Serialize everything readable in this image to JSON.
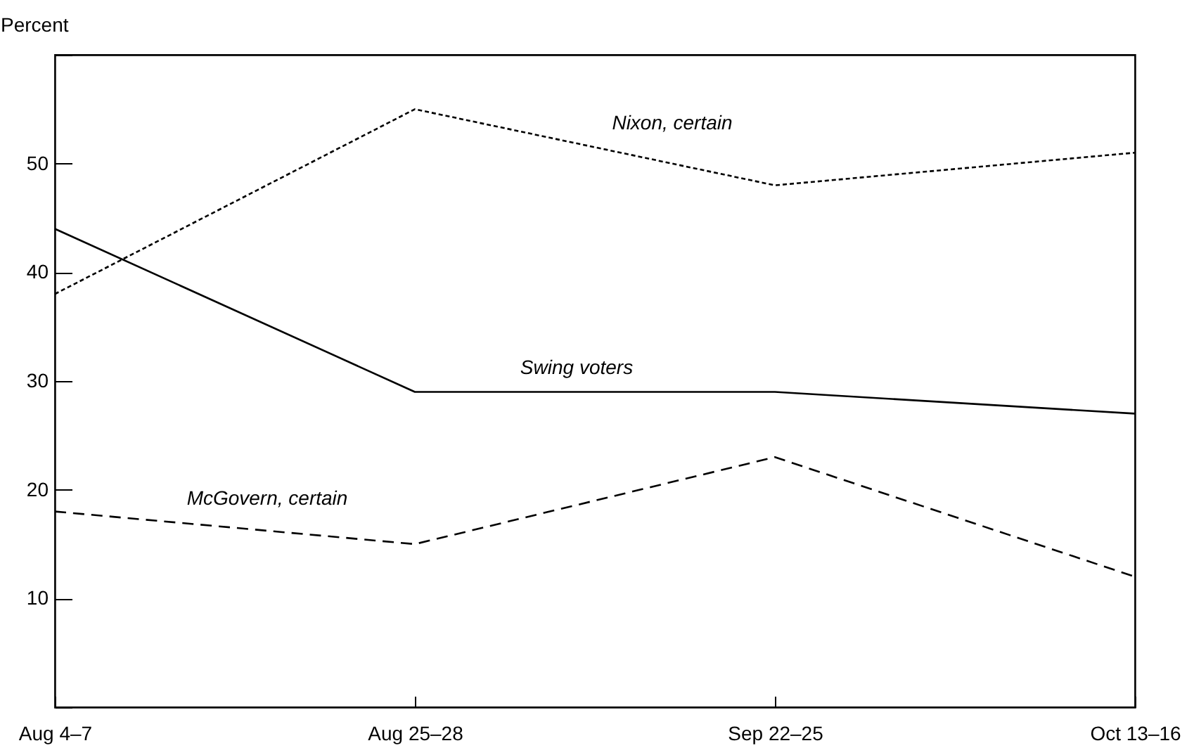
{
  "chart_data": {
    "type": "line",
    "ylabel": "Percent",
    "categories": [
      "Aug 4–7",
      "Aug 25–28",
      "Sep 22–25",
      "Oct 13–16"
    ],
    "series": [
      {
        "name": "Nixon, certain",
        "color": "#000000",
        "line_style": "dotted",
        "values": [
          38,
          55,
          48,
          51
        ]
      },
      {
        "name": "Swing voters",
        "color": "#000000",
        "line_style": "solid",
        "values": [
          44,
          29,
          29,
          27
        ]
      },
      {
        "name": "McGovern, certain",
        "color": "#000000",
        "line_style": "dashed",
        "values": [
          18,
          15,
          23,
          12
        ]
      }
    ],
    "ylim": [
      0,
      60
    ],
    "yticks": [
      {
        "value": 0,
        "label": null
      },
      10,
      20,
      30,
      40,
      50,
      {
        "value": 60,
        "label": null
      }
    ],
    "grid": false,
    "legend": false,
    "marker": "none"
  }
}
